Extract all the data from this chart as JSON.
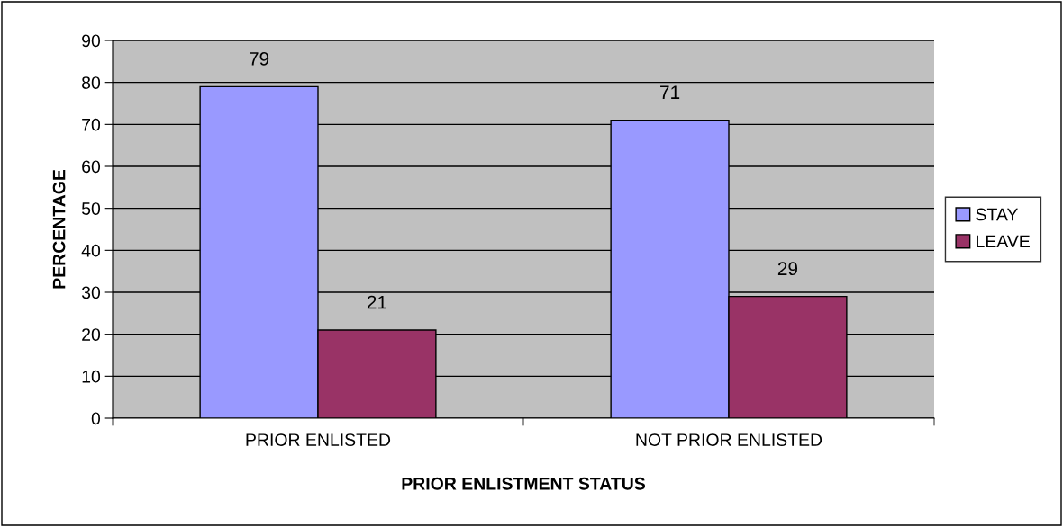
{
  "chart_data": {
    "type": "bar",
    "xlabel": "PRIOR ENLISTMENT STATUS",
    "ylabel": "PERCENTAGE",
    "categories": [
      "PRIOR ENLISTED",
      "NOT PRIOR ENLISTED"
    ],
    "series": [
      {
        "name": "STAY",
        "color": "#9999ff",
        "values": [
          79,
          71
        ]
      },
      {
        "name": "LEAVE",
        "color": "#993366",
        "values": [
          21,
          29
        ]
      }
    ],
    "ylim": [
      0,
      90
    ],
    "yticks": [
      0,
      10,
      20,
      30,
      40,
      50,
      60,
      70,
      80,
      90
    ],
    "grid": "y",
    "legend": "right",
    "data_labels": true
  }
}
